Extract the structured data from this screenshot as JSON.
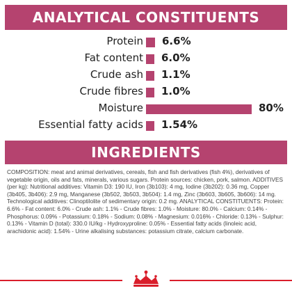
{
  "analytical": {
    "title": "ANALYTICAL CONSTITUENTS",
    "rows": [
      {
        "label": "Protein",
        "value": "6.6%",
        "percent": 6.6
      },
      {
        "label": "Fat content",
        "value": "6.0%",
        "percent": 6.0
      },
      {
        "label": "Crude ash",
        "value": "1.1%",
        "percent": 1.1
      },
      {
        "label": "Crude fibres",
        "value": "1.0%",
        "percent": 1.0
      },
      {
        "label": "Moisture",
        "value": "80%",
        "percent": 80
      },
      {
        "label": "Essential fatty acids",
        "value": "1.54%",
        "percent": 1.54
      }
    ]
  },
  "ingredients": {
    "title": "INGREDIENTS",
    "composition": "COMPOSITION: meat and animal derivatives, cereals, fish and fish derivatives (fish 4%), derivatives of vegetable origin, oils and fats, minerals, various sugars. Protein sources: chicken, pork, salmon. ADDITIVES (per kg): Nutritional additives: Vitamin D3: 190 IU, Iron (3b103): 4 mg, Iodine (3b202): 0.36 mg, Copper (3b405, 3b406): 2.9 mg, Manganese (3b502, 3b503, 3b504): 1.4 mg, Zinc (3b603, 3b605, 3b606): 14 mg. Technological additives: Clinoptilolite of sedimentary origin: 0.2 mg. ANALYTICAL CONSTITUENTS: Protein: 6.6% - Fat content: 6.0% - Crude ash: 1.1% - Crude fibres: 1.0% - Moisture: 80.0% - Calcium: 0.14% - Phosphorus: 0.09% - Potassium: 0.18% - Sodium: 0.08% - Magnesium: 0.016% - Chloride: 0.13% - Sulphur: 0.13% - Vitamin D (total): 330.0 IU/kg - Hydroxyproline: 0.05% - Essential fatty acids (linoleic acid, arachidonic acid): 1.54% - Urine alkalising substances: potassium citrate, calcium carbonate."
  },
  "colors": {
    "accent": "#b5436f",
    "footer_line": "#d91e2b"
  },
  "logo": {
    "icon": "crown-icon"
  }
}
